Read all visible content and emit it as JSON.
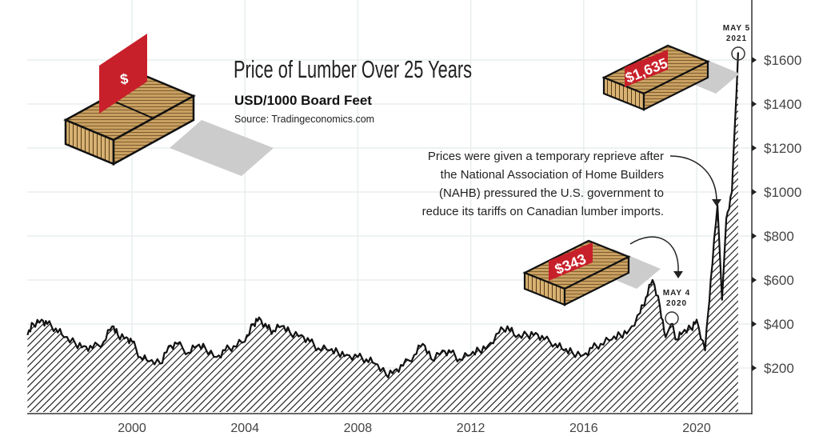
{
  "chart_data": {
    "type": "area",
    "title": "Price of Lumber Over 25 Years",
    "subtitle": "USD/1000 Board Feet",
    "source": "Source: Tradingeconomics.com",
    "xlabel": "",
    "ylabel": "",
    "xlim": [
      1996.3,
      2021.8
    ],
    "ylim": [
      0,
      1700
    ],
    "grid": true,
    "x_ticks": [
      2000,
      2004,
      2008,
      2012,
      2016,
      2020
    ],
    "x_tick_labels": [
      "2000",
      "2004",
      "2008",
      "2012",
      "2016",
      "2020"
    ],
    "y_ticks": [
      200,
      400,
      600,
      800,
      1000,
      1200,
      1400,
      1600
    ],
    "y_tick_labels": [
      "$200",
      "$400",
      "$600",
      "$800",
      "$1000",
      "$1200",
      "$1400",
      "$1600"
    ],
    "x": [
      1996.3,
      1996.5,
      1996.8,
      1997.0,
      1997.3,
      1997.6,
      1998.0,
      1998.3,
      1998.6,
      1999.0,
      1999.3,
      1999.5,
      1999.8,
      2000.0,
      2000.3,
      2000.6,
      2001.0,
      2001.3,
      2001.6,
      2002.0,
      2002.3,
      2002.6,
      2003.0,
      2003.3,
      2003.6,
      2004.0,
      2004.3,
      2004.5,
      2004.8,
      2005.0,
      2005.3,
      2005.6,
      2006.0,
      2006.3,
      2006.6,
      2007.0,
      2007.3,
      2007.6,
      2008.0,
      2008.3,
      2008.6,
      2009.0,
      2009.3,
      2009.6,
      2010.0,
      2010.3,
      2010.6,
      2011.0,
      2011.3,
      2011.6,
      2012.0,
      2012.3,
      2012.6,
      2013.0,
      2013.3,
      2013.6,
      2014.0,
      2014.3,
      2014.6,
      2015.0,
      2015.3,
      2015.6,
      2016.0,
      2016.3,
      2016.6,
      2017.0,
      2017.3,
      2017.6,
      2018.0,
      2018.2,
      2018.44,
      2018.7,
      2018.9,
      2019.1,
      2019.3,
      2019.5,
      2019.8,
      2020.0,
      2020.3,
      2020.5,
      2020.74,
      2020.9,
      2021.05,
      2021.25,
      2021.47
    ],
    "values": [
      350,
      400,
      420,
      400,
      380,
      340,
      310,
      300,
      290,
      320,
      390,
      350,
      340,
      320,
      250,
      230,
      220,
      300,
      310,
      270,
      300,
      290,
      250,
      280,
      300,
      320,
      400,
      430,
      380,
      370,
      390,
      360,
      350,
      320,
      290,
      280,
      270,
      260,
      250,
      240,
      220,
      170,
      190,
      210,
      260,
      310,
      240,
      280,
      270,
      240,
      260,
      280,
      300,
      360,
      390,
      340,
      350,
      360,
      330,
      310,
      280,
      270,
      260,
      290,
      310,
      330,
      350,
      370,
      450,
      520,
      600,
      480,
      340,
      400,
      330,
      360,
      380,
      420,
      280,
      600,
      940,
      510,
      880,
      1000,
      1635
    ],
    "annotations": [
      {
        "label": "$343",
        "date_line1": "MAY 4",
        "date_line2": "2020"
      },
      {
        "label": "$1,635",
        "date_line1": "MAY 5",
        "date_line2": "2021"
      }
    ],
    "note_lines": [
      "Prices were given a temporary reprieve after",
      "the National Association of Home Builders",
      "(NAHB) pressured the U.S. government to",
      "reduce its tariffs on Canadian lumber imports."
    ],
    "logo_sign": "$",
    "colors": {
      "line": "#111111",
      "sign": "#c8202a",
      "wood": "#c9a061",
      "grid": "#e8eeee",
      "shadow": "#cccccc"
    }
  }
}
